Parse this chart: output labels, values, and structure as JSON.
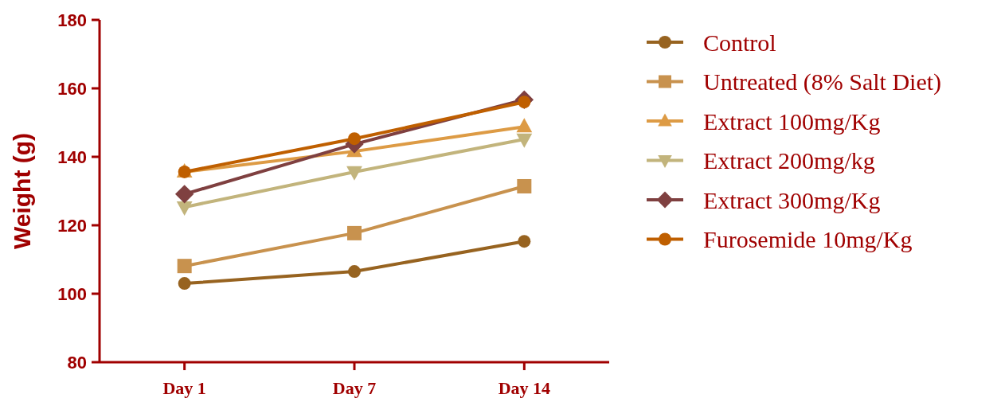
{
  "chart_data": {
    "type": "line",
    "ylabel": "Weight (g)",
    "categories": [
      "Day 1",
      "Day 7",
      "Day 14"
    ],
    "ylim": [
      80,
      180
    ],
    "yticks": [
      80,
      100,
      120,
      140,
      160,
      180
    ],
    "legend": "right",
    "grid": false,
    "series": [
      {
        "name": "Control",
        "color": "#976320",
        "marker": "circle",
        "values": [
          103,
          106.5,
          115.3
        ]
      },
      {
        "name": "Untreated (8% Salt Diet)",
        "color": "#c8924e",
        "marker": "square",
        "values": [
          108.1,
          117.7,
          131.4
        ]
      },
      {
        "name": "Extract 100mg/Kg",
        "color": "#dd9b45",
        "marker": "triangle",
        "values": [
          135.6,
          141.6,
          148.8
        ]
      },
      {
        "name": "Extract 200mg/kg",
        "color": "#c2b47c",
        "marker": "triangle-down",
        "values": [
          125.3,
          135.6,
          145.1
        ]
      },
      {
        "name": "Extract 300mg/Kg",
        "color": "#7f4040",
        "marker": "diamond",
        "values": [
          129.1,
          143.7,
          156.7
        ]
      },
      {
        "name": "Furosemide 10mg/Kg",
        "color": "#bf5f00",
        "marker": "circle",
        "values": [
          135.6,
          145.3,
          156
        ]
      }
    ]
  }
}
